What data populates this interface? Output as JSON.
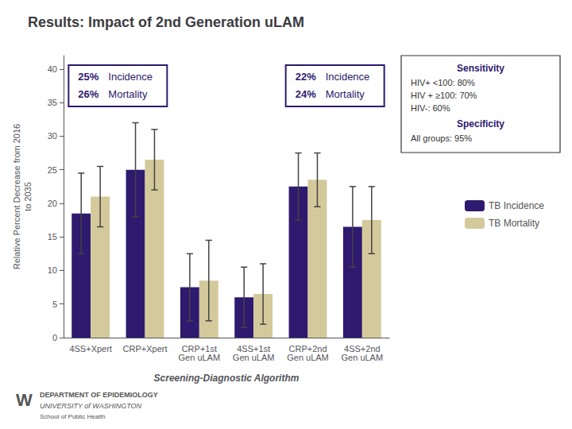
{
  "chart_data": {
    "type": "bar",
    "title": "Results: Impact of 2nd Generation uLAM",
    "xlabel": "Screening-Diagnostic Algorithm",
    "ylabel": "Relative Percent Decrease from 2016\nto 2035",
    "categories": [
      "4SS+Xpert",
      "CRP+Xpert",
      "CRP+1st\nGen uLAM",
      "4SS+1st\nGen uLAM",
      "CRP+2nd\nGen uLAM",
      "4SS+2nd\nGen uLAM"
    ],
    "series": [
      {
        "name": "TB Incidence",
        "color": "#2E1A6E",
        "values": [
          18.5,
          25.0,
          7.5,
          6.0,
          22.5,
          16.5
        ],
        "errors": [
          6.0,
          7.0,
          5.0,
          4.5,
          5.0,
          6.0
        ]
      },
      {
        "name": "TB Mortality",
        "color": "#D4C99A",
        "values": [
          21.0,
          26.5,
          8.5,
          6.5,
          23.5,
          17.5
        ],
        "errors": [
          4.5,
          4.5,
          6.0,
          4.5,
          4.0,
          5.0
        ]
      }
    ],
    "ylim": [
      0,
      42
    ],
    "yticks": [
      0,
      5,
      10,
      15,
      20,
      25,
      30,
      35,
      40
    ],
    "grid": false,
    "legend": "right",
    "annotations": [
      {
        "rows": [
          [
            "25%",
            "Incidence"
          ],
          [
            "26%",
            "Mortality"
          ]
        ]
      },
      {
        "rows": [
          [
            "22%",
            "Incidence"
          ],
          [
            "24%",
            "Mortality"
          ]
        ]
      },
      {
        "heading": "Sensitivity",
        "lines": [
          "HIV+ <100: 80%",
          "HIV + ≥100: 70%",
          "HIV-: 60%"
        ]
      },
      {
        "heading": "Specificity",
        "lines": [
          "All groups: 95%"
        ]
      },
      {
        "lines": [
          "W",
          "DEPARTMENT OF EPIDEMIOLOGY",
          "UNIVERSITY of WASHINGTON",
          "School of Public Health"
        ]
      }
    ]
  }
}
